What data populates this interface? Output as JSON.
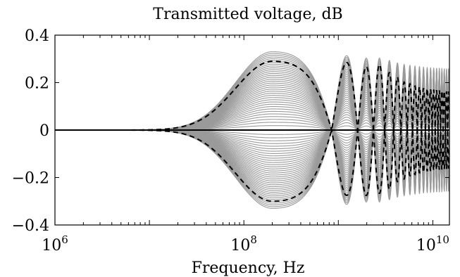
{
  "chart_data": {
    "type": "line",
    "title": "Transmitted voltage, dB",
    "xlabel": "Frequency, Hz",
    "ylabel": "",
    "x_scale": "log",
    "xlim": [
      1000000,
      15000000000
    ],
    "ylim": [
      -0.4,
      0.4
    ],
    "grid": false,
    "x_ticks": [
      {
        "value": 1000000,
        "base": "10",
        "exp": "6"
      },
      {
        "value": 100000000,
        "base": "10",
        "exp": "8"
      },
      {
        "value": 10000000000,
        "base": "10",
        "exp": "10"
      }
    ],
    "y_ticks": [
      {
        "value": 0.4,
        "label": "0.4"
      },
      {
        "value": 0.2,
        "label": "0.2"
      },
      {
        "value": 0,
        "label": "0"
      },
      {
        "value": -0.2,
        "label": "−0.2"
      },
      {
        "value": -0.4,
        "label": "−0.4"
      }
    ],
    "colors": {
      "gray_curves": "#9a9a9a",
      "dashed_envelope": "#000000",
      "zero_line": "#000000"
    },
    "envelope": {
      "peak_frequency_hz": 200000000,
      "first_lobe_amplitude_db": 0.29,
      "later_lobe_amplitude_db": 0.27,
      "asymptotic_amplitude_db": 0.17,
      "gray_max_amplitude_db": 0.33,
      "null_frequencies_hz": [
        850000000,
        1600000000,
        2450000000
      ]
    },
    "series": [
      {
        "style": "gray-solid",
        "count": 36,
        "amplitude_range_db": [
          0.0,
          0.33
        ]
      },
      {
        "style": "black-dashed",
        "values_db": [
          0.29,
          -0.3
        ]
      },
      {
        "style": "black-solid",
        "values_db": [
          0.0
        ]
      }
    ]
  }
}
